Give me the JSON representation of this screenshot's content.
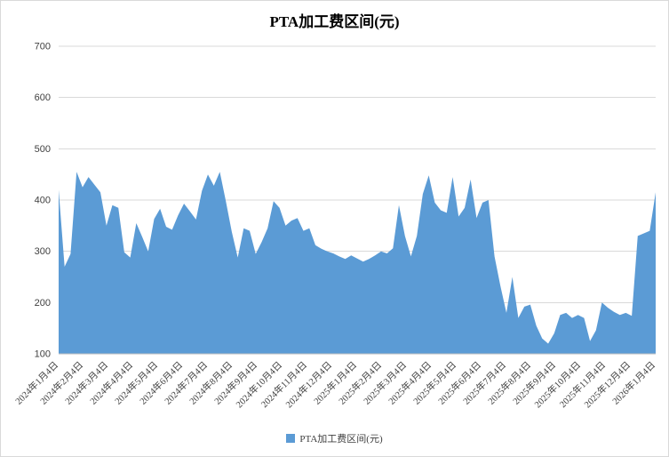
{
  "chart": {
    "title": "PTA加工费区间(元)",
    "legend": "PTA加工费区间(元)"
  },
  "chart_data": {
    "type": "area",
    "title": "PTA加工费区间(元)",
    "legend_entries": [
      "PTA加工费区间(元)"
    ],
    "legend_position": "bottom",
    "grid": "horizontal",
    "series_color": "#5B9BD5",
    "gridline_color": "#d9d9d9",
    "ylim": [
      100,
      700
    ],
    "y_ticks": [
      100,
      200,
      300,
      400,
      500,
      600,
      700
    ],
    "x_tick_labels": [
      "2024年1月4日",
      "2024年2月4日",
      "2024年3月4日",
      "2024年4月4日",
      "2024年5月4日",
      "2024年6月4日",
      "2024年7月4日",
      "2024年8月4日",
      "2024年9月4日",
      "2024年10月4日",
      "2024年11月4日",
      "2024年12月4日",
      "2025年1月4日",
      "2025年2月4日",
      "2025年3月4日",
      "2025年4月4日",
      "2025年5月4日",
      "2025年6月4日",
      "2025年7月4日",
      "2025年8月4日",
      "2025年9月4日",
      "2025年10月4日",
      "2025年11月4日",
      "2025年12月4日",
      "2026年1月4日"
    ],
    "values": [
      420,
      270,
      295,
      455,
      425,
      445,
      430,
      415,
      350,
      390,
      385,
      298,
      288,
      355,
      328,
      300,
      363,
      383,
      348,
      342,
      370,
      393,
      378,
      362,
      418,
      450,
      428,
      455,
      398,
      338,
      288,
      345,
      340,
      295,
      318,
      345,
      398,
      385,
      350,
      360,
      365,
      340,
      345,
      312,
      305,
      300,
      296,
      290,
      285,
      292,
      286,
      280,
      285,
      292,
      300,
      296,
      306,
      390,
      330,
      290,
      330,
      412,
      448,
      395,
      380,
      375,
      445,
      368,
      385,
      440,
      365,
      395,
      400,
      290,
      232,
      180,
      250,
      170,
      192,
      196,
      155,
      130,
      120,
      140,
      176,
      180,
      170,
      176,
      170,
      125,
      146,
      200,
      190,
      182,
      176,
      180,
      174,
      330,
      335,
      340,
      415
    ]
  }
}
